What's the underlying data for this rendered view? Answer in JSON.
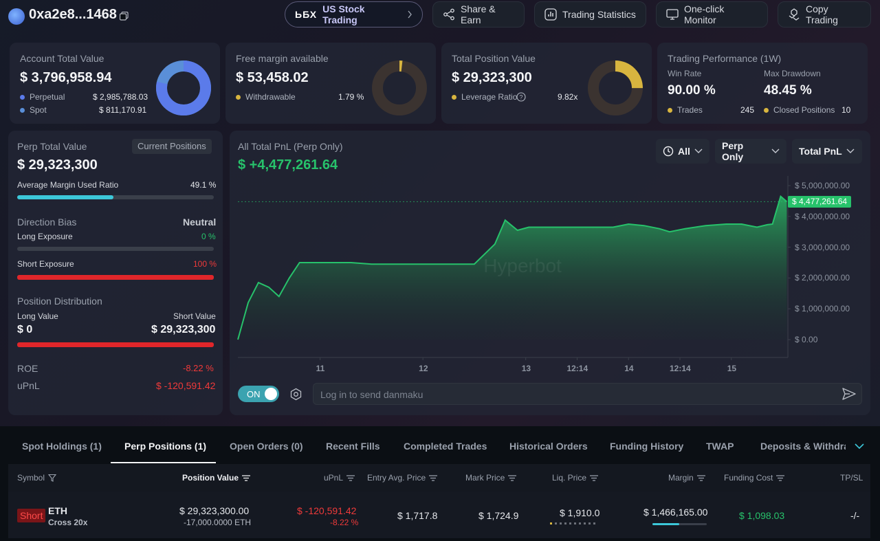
{
  "header": {
    "address": "0xa2e8...1468",
    "buttons": {
      "us_stock": "US Stock Trading",
      "share": "Share & Earn",
      "stats": "Trading Statistics",
      "monitor": "One-click Monitor",
      "copy": "Copy Trading"
    }
  },
  "account": {
    "title": "Account Total Value",
    "value": "$ 3,796,958.94",
    "perp_label": "Perpetual",
    "perp_value": "$ 2,985,788.03",
    "spot_label": "Spot",
    "spot_value": "$ 811,170.91",
    "perp_fraction": 0.786
  },
  "margin": {
    "title": "Free margin available",
    "value": "$ 53,458.02",
    "withdrawable_label": "Withdrawable",
    "withdrawable_pct": "1.79 %",
    "fraction": 0.0179
  },
  "position": {
    "title": "Total Position Value",
    "value": "$ 29,323,300",
    "leverage_label": "Leverage Ratio",
    "leverage_value": "9.82x",
    "fraction": 0.25
  },
  "performance": {
    "title": "Trading Performance (1W)",
    "win_rate_label": "Win Rate",
    "win_rate": "90.00 %",
    "drawdown_label": "Max Drawdown",
    "drawdown": "48.45 %",
    "trades_label": "Trades",
    "trades": "245",
    "closed_label": "Closed Positions",
    "closed": "10"
  },
  "perp_panel": {
    "title": "Perp Total Value",
    "chip": "Current Positions",
    "value": "$ 29,323,300",
    "margin_ratio_label": "Average Margin Used Ratio",
    "margin_ratio": "49.1 %",
    "margin_ratio_fraction": 0.491,
    "direction_label": "Direction Bias",
    "direction_value": "Neutral",
    "long_label": "Long Exposure",
    "long_pct": "0 %",
    "long_fraction": 0,
    "short_label": "Short Exposure",
    "short_pct": "100 %",
    "short_fraction": 1,
    "dist_label": "Position Distribution",
    "long_value_label": "Long Value",
    "short_value_label": "Short Value",
    "long_value": "$ 0",
    "short_value": "$ 29,323,300",
    "short_value_fraction": 1,
    "roe_label": "ROE",
    "roe": "-8.22 %",
    "upnl_label": "uPnL",
    "upnl": "$ -120,591.42"
  },
  "pnl": {
    "title": "All Total PnL (Perp Only)",
    "value": "$ +4,477,261.64",
    "filters": {
      "range": "All",
      "scope": "Perp Only",
      "metric": "Total PnL"
    },
    "current_label": "$ 4,477,261.64",
    "watermark": "Hyperbot",
    "danmaku_toggle": "ON",
    "danmaku_placeholder": "Log in to send danmaku"
  },
  "chart_data": {
    "type": "area",
    "y_ticks": [
      "$ 5,000,000.00",
      "$ 4,000,000.00",
      "$ 3,000,000.00",
      "$ 2,000,000.00",
      "$ 1,000,000.00",
      "$ 0.00"
    ],
    "y_tick_values": [
      5000000,
      4000000,
      3000000,
      2000000,
      1000000,
      0
    ],
    "x_ticks": [
      "11",
      "12",
      "13",
      "12:14",
      "14",
      "12:14",
      "15"
    ],
    "x_tick_positions": [
      0.8,
      1.8,
      2.8,
      3.3,
      3.8,
      4.3,
      4.8
    ],
    "ylim": [
      0,
      5000000
    ],
    "xlim": [
      0.0,
      5.35
    ],
    "x": [
      0.0,
      0.1,
      0.2,
      0.3,
      0.4,
      0.5,
      0.6,
      0.75,
      0.9,
      1.1,
      1.3,
      1.5,
      1.7,
      1.9,
      2.1,
      2.3,
      2.5,
      2.6,
      2.72,
      2.83,
      2.95,
      3.1,
      3.3,
      3.5,
      3.65,
      3.8,
      3.95,
      4.1,
      4.2,
      4.35,
      4.55,
      4.75,
      4.9,
      5.05,
      5.15,
      5.2,
      5.28,
      5.34
    ],
    "y": [
      0,
      1200000,
      1850000,
      1700000,
      1400000,
      2000000,
      2500000,
      2500000,
      2500000,
      2500000,
      2450000,
      2450000,
      2450000,
      2450000,
      2450000,
      2450000,
      3100000,
      3880000,
      3550000,
      3650000,
      3650000,
      3650000,
      3650000,
      3650000,
      3650000,
      3750000,
      3700000,
      3600000,
      3500000,
      3600000,
      3700000,
      3750000,
      3750000,
      3650000,
      3730000,
      3750000,
      4650000,
      4477261
    ]
  },
  "tabs": [
    "Spot Holdings (1)",
    "Perp Positions (1)",
    "Open Orders (0)",
    "Recent Fills",
    "Completed Trades",
    "Historical Orders",
    "Funding History",
    "TWAP",
    "Deposits & Withdraw"
  ],
  "table": {
    "headers": {
      "symbol": "Symbol",
      "position_value": "Position Value",
      "upnl": "uPnL",
      "entry": "Entry Avg. Price",
      "mark": "Mark Price",
      "liq": "Liq. Price",
      "margin": "Margin",
      "funding": "Funding Cost",
      "tpsl": "TP/SL"
    },
    "row": {
      "side": "Short",
      "coin": "ETH",
      "mode": "Cross 20x",
      "position_value": "$ 29,323,300.00",
      "size": "-17,000.0000 ETH",
      "upnl": "$ -120,591.42",
      "upnl_pct": "-8.22 %",
      "entry": "$ 1,717.8",
      "mark": "$ 1,724.9",
      "liq": "$ 1,910.0",
      "margin": "$ 1,466,165.00",
      "margin_fraction": 0.49,
      "funding": "$ 1,098.03",
      "tpsl": "-/-"
    }
  },
  "colors": {
    "accent_blue": "#5b7bea",
    "spot_blue": "#5a8fd8",
    "gold": "#d8b53f",
    "green": "#27c26b",
    "red": "#f03a3a",
    "teal": "#3cc7d9"
  }
}
